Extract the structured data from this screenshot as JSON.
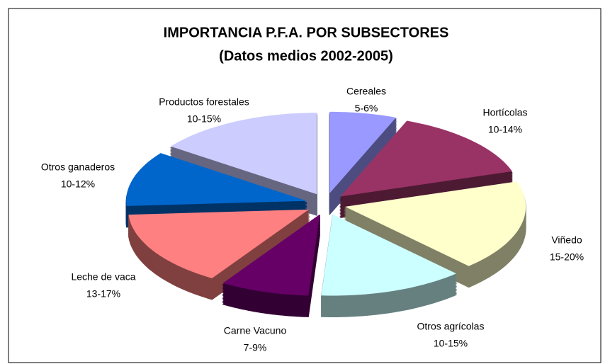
{
  "chart_data": {
    "type": "pie",
    "title": "IMPORTANCIA P.F.A. POR SUBSECTORES",
    "subtitle": "(Datos medios 2002-2005)",
    "categories": [
      "Cereales",
      "Hortícolas",
      "Viñedo",
      "Otros agrícolas",
      "Carne Vacuno",
      "Leche de vaca",
      "Otros ganaderos",
      "Productos forestales"
    ],
    "values": [
      6,
      14,
      18,
      13,
      8,
      15,
      11,
      15
    ],
    "value_labels": [
      "5-6%",
      "10-14%",
      "15-20%",
      "10-15%",
      "7-9%",
      "13-17%",
      "10-12%",
      "10-15%"
    ],
    "colors": [
      "#9999ff",
      "#993366",
      "#ffffcc",
      "#ccffff",
      "#660066",
      "#ff8080",
      "#0066cc",
      "#ccccff"
    ]
  }
}
